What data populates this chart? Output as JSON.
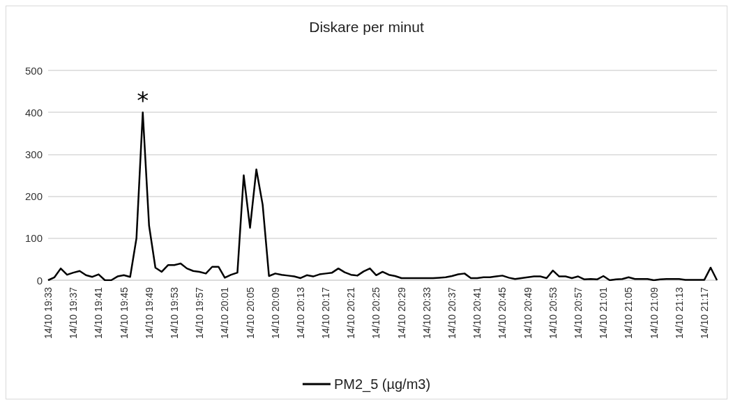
{
  "chart_data": {
    "type": "line",
    "title": "Diskare per minut",
    "categories": [
      "14/10 19:33",
      null,
      null,
      null,
      "14/10 19:37",
      null,
      null,
      null,
      "14/10 19:41",
      null,
      null,
      null,
      "14/10 19:45",
      null,
      null,
      null,
      "14/10 19:49",
      null,
      null,
      null,
      "14/10 19:53",
      null,
      null,
      null,
      "14/10 19:57",
      null,
      null,
      null,
      "14/10 20:01",
      null,
      null,
      null,
      "14/10 20:05",
      null,
      null,
      null,
      "14/10 20:09",
      null,
      null,
      null,
      "14/10 20:13",
      null,
      null,
      null,
      "14/10 20:17",
      null,
      null,
      null,
      "14/10 20:21",
      null,
      null,
      null,
      "14/10 20:25",
      null,
      null,
      null,
      "14/10 20:29",
      null,
      null,
      null,
      "14/10 20:33",
      null,
      null,
      null,
      "14/10 20:37",
      null,
      null,
      null,
      "14/10 20:41",
      null,
      null,
      null,
      "14/10 20:45",
      null,
      null,
      null,
      "14/10 20:49",
      null,
      null,
      null,
      "14/10 20:53",
      null,
      null,
      null,
      "14/10 20:57",
      null,
      null,
      null,
      "14/10 21:01",
      null,
      null,
      null,
      "14/10 21:05",
      null,
      null,
      null,
      "14/10 21:09",
      null,
      null,
      null,
      "14/10 21:13",
      null,
      null,
      null,
      "14/10 21:17",
      null,
      null
    ],
    "series": [
      {
        "name": "PM2_5 (µg/m3)",
        "color": "#000000",
        "values": [
          0,
          7,
          28,
          13,
          18,
          22,
          12,
          8,
          14,
          0,
          0,
          9,
          12,
          8,
          100,
          400,
          130,
          30,
          20,
          36,
          36,
          40,
          28,
          22,
          20,
          16,
          32,
          32,
          6,
          13,
          18,
          250,
          125,
          264,
          180,
          10,
          16,
          13,
          11,
          9,
          5,
          12,
          9,
          14,
          16,
          18,
          28,
          19,
          13,
          11,
          21,
          28,
          12,
          20,
          13,
          10,
          5,
          5,
          5,
          5,
          5,
          5,
          6,
          7,
          10,
          14,
          16,
          5,
          5,
          7,
          7,
          9,
          11,
          6,
          3,
          5,
          7,
          9,
          9,
          5,
          23,
          9,
          9,
          5,
          9,
          2,
          3,
          2,
          10,
          0,
          2,
          3,
          7,
          3,
          3,
          3,
          0,
          2,
          3,
          3,
          3,
          1,
          1,
          1,
          1,
          30,
          0
        ]
      }
    ],
    "ylim": [
      0,
      500
    ],
    "yticks": [
      0,
      100,
      200,
      300,
      400,
      500
    ],
    "annotations": [
      {
        "text": "*",
        "y": 400
      }
    ],
    "grid": "y",
    "legend": "bottom",
    "marker": "none",
    "line_style": "solid"
  }
}
